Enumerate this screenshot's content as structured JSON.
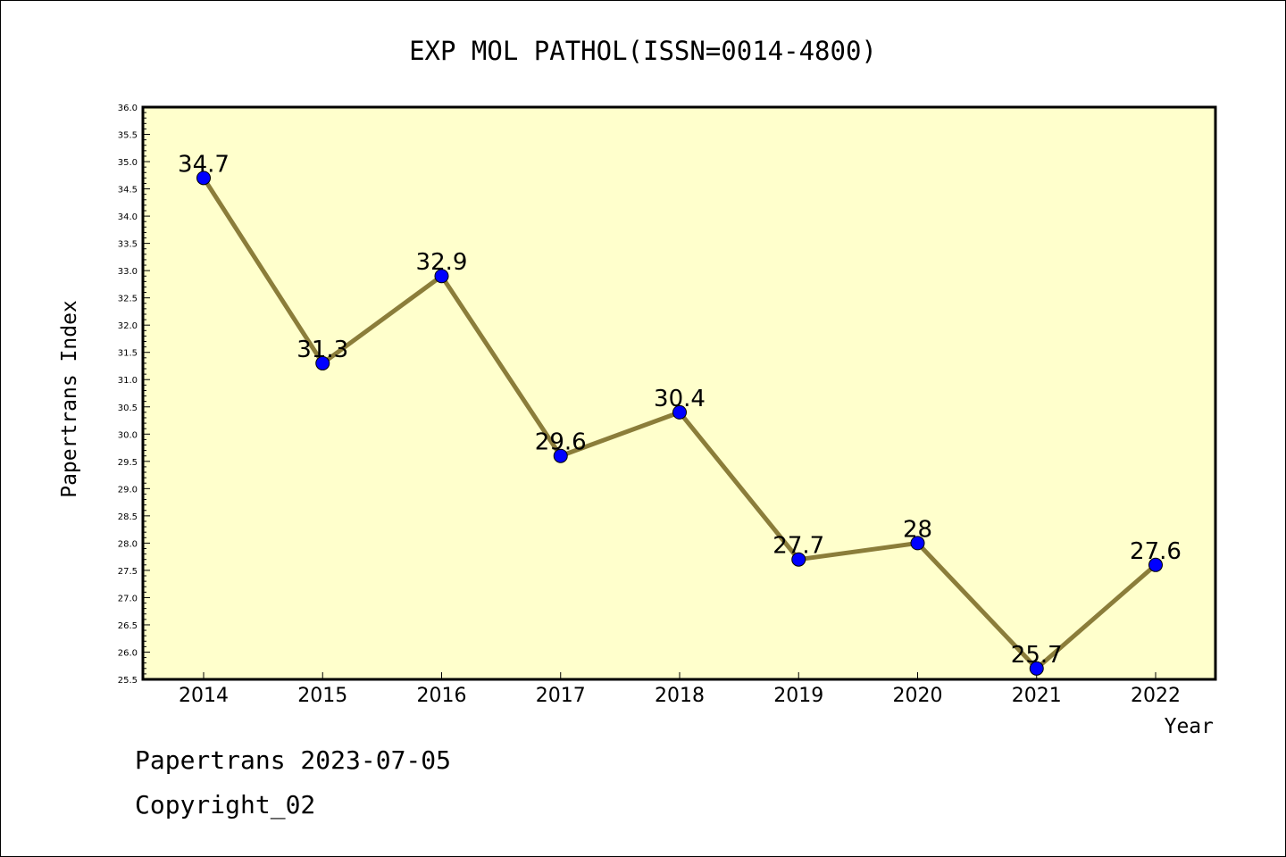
{
  "footer": {
    "line1": "Papertrans 2023-07-05",
    "line2": "Copyright_02"
  },
  "chart_data": {
    "type": "line",
    "title": "EXP MOL PATHOL(ISSN=0014-4800)",
    "xlabel": "Year",
    "ylabel": "Papertrans Index",
    "categories": [
      "2014",
      "2015",
      "2016",
      "2017",
      "2018",
      "2019",
      "2020",
      "2021",
      "2022"
    ],
    "values": [
      34.7,
      31.3,
      32.9,
      29.6,
      30.4,
      27.7,
      28,
      25.7,
      27.6
    ],
    "data_labels": [
      "34.7",
      "31.3",
      "32.9",
      "29.6",
      "30.4",
      "27.7",
      "28",
      "25.7",
      "27.6"
    ],
    "ylim": [
      25.5,
      36.0
    ],
    "ytick_step": 0.5,
    "grid": false,
    "colors": {
      "plot_background": "#ffffcc",
      "line": "#8b7d3a",
      "marker": "#0000ff"
    }
  }
}
